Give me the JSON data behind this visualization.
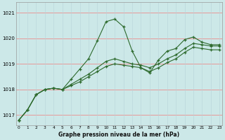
{
  "title": "Graphe pression niveau de la mer (hPa)",
  "xlabel_hours": [
    0,
    1,
    2,
    3,
    4,
    5,
    6,
    7,
    8,
    9,
    10,
    11,
    12,
    13,
    14,
    15,
    16,
    17,
    18,
    19,
    20,
    21,
    22,
    23
  ],
  "line1": [
    1016.8,
    1017.2,
    1017.8,
    1018.0,
    1018.05,
    1018.0,
    1018.4,
    1018.8,
    1019.2,
    1019.9,
    1020.65,
    1020.75,
    1020.45,
    1019.5,
    1018.85,
    1018.65,
    1019.15,
    1019.5,
    1019.6,
    1019.95,
    1020.05,
    1019.85,
    1019.75,
    1019.75
  ],
  "line2": [
    1016.8,
    1017.2,
    1017.8,
    1018.0,
    1018.05,
    1018.0,
    1018.2,
    1018.4,
    1018.6,
    1018.85,
    1019.1,
    1019.2,
    1019.1,
    1019.0,
    1018.95,
    1018.85,
    1019.0,
    1019.2,
    1019.35,
    1019.6,
    1019.8,
    1019.75,
    1019.7,
    1019.7
  ],
  "line3": [
    1016.8,
    1017.2,
    1017.8,
    1018.0,
    1018.05,
    1018.0,
    1018.15,
    1018.3,
    1018.5,
    1018.7,
    1018.9,
    1019.0,
    1018.95,
    1018.9,
    1018.85,
    1018.7,
    1018.85,
    1019.05,
    1019.2,
    1019.45,
    1019.65,
    1019.6,
    1019.55,
    1019.55
  ],
  "line_color": "#2d6a2d",
  "bg_color": "#cce8e8",
  "grid_color_h": "#e89898",
  "grid_color_v": "#b8d4d8",
  "ylim": [
    1016.6,
    1021.4
  ],
  "yticks": [
    1017,
    1018,
    1019,
    1020,
    1021
  ]
}
